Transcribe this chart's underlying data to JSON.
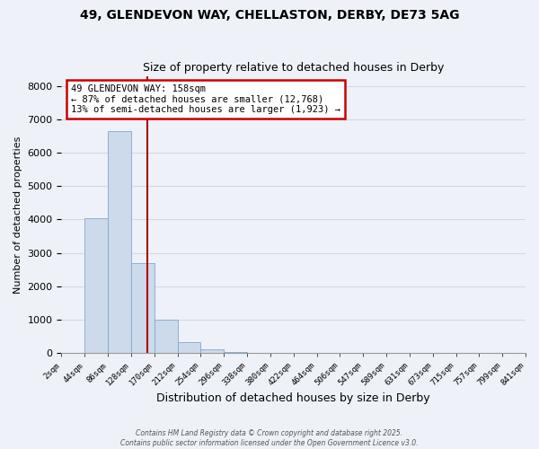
{
  "title": "49, GLENDEVON WAY, CHELLASTON, DERBY, DE73 5AG",
  "subtitle": "Size of property relative to detached houses in Derby",
  "xlabel": "Distribution of detached houses by size in Derby",
  "ylabel": "Number of detached properties",
  "bar_values": [
    0,
    4050,
    6650,
    2700,
    1000,
    340,
    120,
    30,
    0,
    0,
    0,
    0,
    0,
    0,
    0,
    0,
    0,
    0,
    0,
    0
  ],
  "bar_labels": [
    "2sqm",
    "44sqm",
    "86sqm",
    "128sqm",
    "170sqm",
    "212sqm",
    "254sqm",
    "296sqm",
    "338sqm",
    "380sqm",
    "422sqm",
    "464sqm",
    "506sqm",
    "547sqm",
    "589sqm",
    "631sqm",
    "673sqm",
    "715sqm",
    "757sqm",
    "799sqm",
    "841sqm"
  ],
  "bar_color": "#cddaeb",
  "bar_edgecolor": "#7fa8cc",
  "vline_color": "#aa0000",
  "vline_x": 3.71,
  "annotation_line1": "49 GLENDEVON WAY: 158sqm",
  "annotation_line2": "← 87% of detached houses are smaller (12,768)",
  "annotation_line3": "13% of semi-detached houses are larger (1,923) →",
  "annotation_box_color": "#cc0000",
  "annotation_box_bg": "#ffffff",
  "ylim": [
    0,
    8300
  ],
  "yticks": [
    0,
    1000,
    2000,
    3000,
    4000,
    5000,
    6000,
    7000,
    8000
  ],
  "background_color": "#eef2f8",
  "grid_color": "#d0d8e8",
  "footer_line1": "Contains HM Land Registry data © Crown copyright and database right 2025.",
  "footer_line2": "Contains public sector information licensed under the Open Government Licence v3.0.",
  "title_fontsize": 10,
  "subtitle_fontsize": 9
}
